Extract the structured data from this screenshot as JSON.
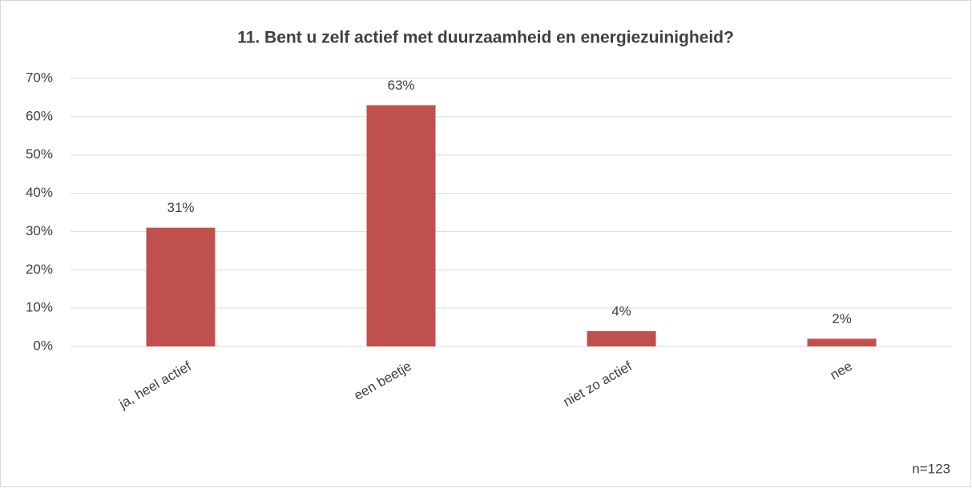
{
  "chart_data": {
    "type": "bar",
    "title": "11. Bent u zelf actief met duurzaamheid en energiezuinigheid?",
    "categories": [
      "ja, heel actief",
      "een beetje",
      "niet zo actief",
      "nee"
    ],
    "values": [
      31,
      63,
      4,
      2
    ],
    "value_labels": [
      "31%",
      "63%",
      "4%",
      "2%"
    ],
    "color": "#c0504d",
    "ylim": [
      0,
      70
    ],
    "yticks": [
      {
        "value": 0,
        "label": "0%"
      },
      {
        "value": 10,
        "label": "10%"
      },
      {
        "value": 20,
        "label": "20%"
      },
      {
        "value": 30,
        "label": "30%"
      },
      {
        "value": 40,
        "label": "40%"
      },
      {
        "value": 50,
        "label": "50%"
      },
      {
        "value": 60,
        "label": "60%"
      },
      {
        "value": 70,
        "label": "70%"
      }
    ],
    "grid": true,
    "annotation": "n=123"
  }
}
